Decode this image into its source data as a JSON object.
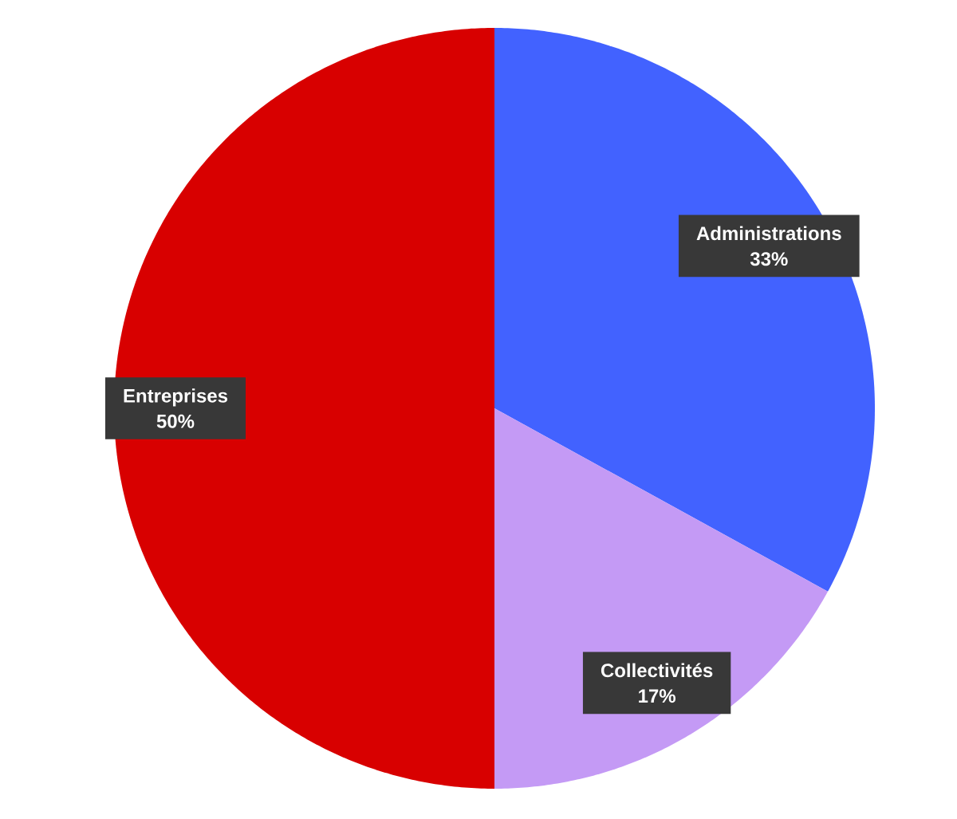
{
  "chart_data": {
    "type": "pie",
    "categories": [
      "Administrations",
      "Collectivités",
      "Entreprises"
    ],
    "values": [
      33,
      17,
      50
    ],
    "value_labels": [
      "33%",
      "17%",
      "50%"
    ],
    "colors": [
      "#4262ff",
      "#c49af5",
      "#d80000"
    ]
  }
}
